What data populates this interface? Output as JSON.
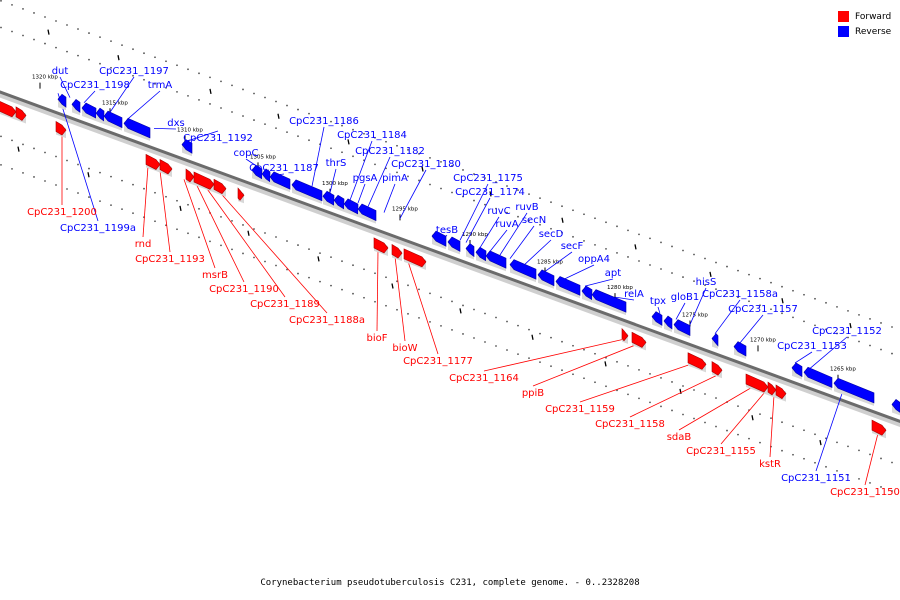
{
  "legend": {
    "forward_label": "Forward",
    "reverse_label": "Reverse",
    "forward_color": "#ff0000",
    "reverse_color": "#0000ff"
  },
  "caption": "Corynebacterium pseudotuberculosis C231, complete genome. - 0..2328208",
  "ruler_ticks": [
    "1320 kbp",
    "1315 kbp",
    "1310 kbp",
    "1305 kbp",
    "1300 kbp",
    "1295 kbp",
    "1290 kbp",
    "1285 kbp",
    "1280 kbp",
    "1275 kbp",
    "1270 kbp",
    "1265 kbp"
  ],
  "genes": [
    {
      "name": "dut",
      "strand": "reverse"
    },
    {
      "name": "CpC231_1198",
      "strand": "reverse"
    },
    {
      "name": "CpC231_1197",
      "strand": "reverse"
    },
    {
      "name": "trmA",
      "strand": "reverse"
    },
    {
      "name": "dxs",
      "strand": "reverse"
    },
    {
      "name": "CpC231_1192",
      "strand": "reverse"
    },
    {
      "name": "copC",
      "strand": "reverse"
    },
    {
      "name": "CpC231_1187",
      "strand": "reverse"
    },
    {
      "name": "CpC231_1186",
      "strand": "reverse"
    },
    {
      "name": "thrS",
      "strand": "reverse"
    },
    {
      "name": "CpC231_1184",
      "strand": "reverse"
    },
    {
      "name": "pgsA",
      "strand": "reverse"
    },
    {
      "name": "CpC231_1182",
      "strand": "reverse"
    },
    {
      "name": "pimA",
      "strand": "reverse"
    },
    {
      "name": "CpC231_1180",
      "strand": "reverse"
    },
    {
      "name": "tesB",
      "strand": "reverse"
    },
    {
      "name": "CpC231_1175",
      "strand": "reverse"
    },
    {
      "name": "CpC231_1174",
      "strand": "reverse"
    },
    {
      "name": "ruvC",
      "strand": "reverse"
    },
    {
      "name": "ruvA",
      "strand": "reverse"
    },
    {
      "name": "ruvB",
      "strand": "reverse"
    },
    {
      "name": "secN",
      "strand": "reverse"
    },
    {
      "name": "secD",
      "strand": "reverse"
    },
    {
      "name": "secF",
      "strand": "reverse"
    },
    {
      "name": "oppA4",
      "strand": "reverse"
    },
    {
      "name": "apt",
      "strand": "reverse"
    },
    {
      "name": "relA",
      "strand": "reverse"
    },
    {
      "name": "tpx",
      "strand": "reverse"
    },
    {
      "name": "gloB1",
      "strand": "reverse"
    },
    {
      "name": "hisS",
      "strand": "reverse"
    },
    {
      "name": "CpC231_1158a",
      "strand": "reverse"
    },
    {
      "name": "CpC231_1157",
      "strand": "reverse"
    },
    {
      "name": "CpC231_1152",
      "strand": "reverse"
    },
    {
      "name": "CpC231_1153",
      "strand": "reverse"
    },
    {
      "name": "CpC231_1199a",
      "strand": "reverse"
    },
    {
      "name": "CpC231_1151",
      "strand": "reverse"
    },
    {
      "name": "CpC231_1200",
      "strand": "forward"
    },
    {
      "name": "rnd",
      "strand": "forward"
    },
    {
      "name": "CpC231_1193",
      "strand": "forward"
    },
    {
      "name": "msrB",
      "strand": "forward"
    },
    {
      "name": "CpC231_1190",
      "strand": "forward"
    },
    {
      "name": "CpC231_1189",
      "strand": "forward"
    },
    {
      "name": "CpC231_1188a",
      "strand": "forward"
    },
    {
      "name": "bioF",
      "strand": "forward"
    },
    {
      "name": "bioW",
      "strand": "forward"
    },
    {
      "name": "CpC231_1177",
      "strand": "forward"
    },
    {
      "name": "CpC231_1164",
      "strand": "forward"
    },
    {
      "name": "ppiB",
      "strand": "forward"
    },
    {
      "name": "CpC231_1159",
      "strand": "forward"
    },
    {
      "name": "CpC231_1158",
      "strand": "forward"
    },
    {
      "name": "sdaB",
      "strand": "forward"
    },
    {
      "name": "CpC231_1155",
      "strand": "forward"
    },
    {
      "name": "kstR",
      "strand": "forward"
    },
    {
      "name": "CpC231_1150",
      "strand": "forward"
    }
  ]
}
